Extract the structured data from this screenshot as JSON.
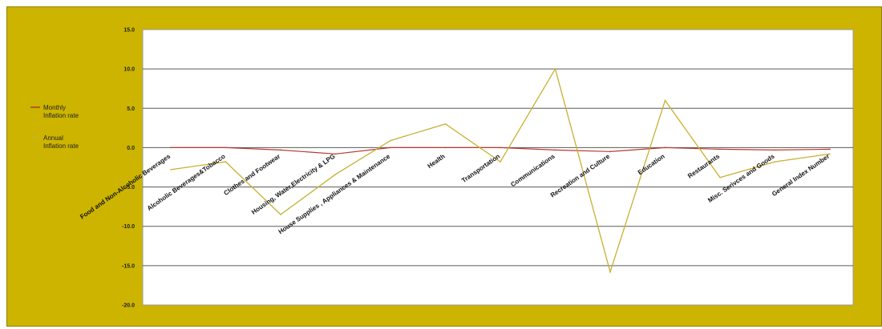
{
  "chart_data": {
    "type": "line",
    "categories": [
      "Food and Non-Alcoholic Beverages",
      "Alcoholic Beverages&Tobacco",
      "Clothes and Footwear",
      "Housing, Water,Electricity & LPG",
      "House Supplies , Appliances & Maintenance",
      "Health",
      "Transportation",
      "Communications",
      "Recreation and Culture",
      "Education",
      "Restaurants",
      "Misc. Serivces and Goods",
      "General Index Number"
    ],
    "series": [
      {
        "name": "Monthly Inflation rate",
        "color": "#b83a2c",
        "values": [
          0.0,
          0.0,
          -0.3,
          -0.8,
          0.0,
          0.0,
          0.0,
          -0.3,
          -0.5,
          0.0,
          -0.2,
          -0.3,
          -0.2
        ]
      },
      {
        "name": "Annual Inflation rate",
        "color": "#c8b030",
        "values": [
          -2.8,
          -1.8,
          -8.5,
          -3.4,
          0.9,
          3.0,
          -1.8,
          10.0,
          -15.8,
          6.0,
          -3.8,
          -1.8,
          -0.8
        ]
      }
    ],
    "ylim": [
      -20,
      15
    ],
    "yticks": [
      "15.0",
      "10.0",
      "5.0",
      "0.0",
      "-5.0",
      "-10.0",
      "-15.0",
      "-20.0"
    ],
    "grid": true,
    "legend_placement": "left"
  }
}
